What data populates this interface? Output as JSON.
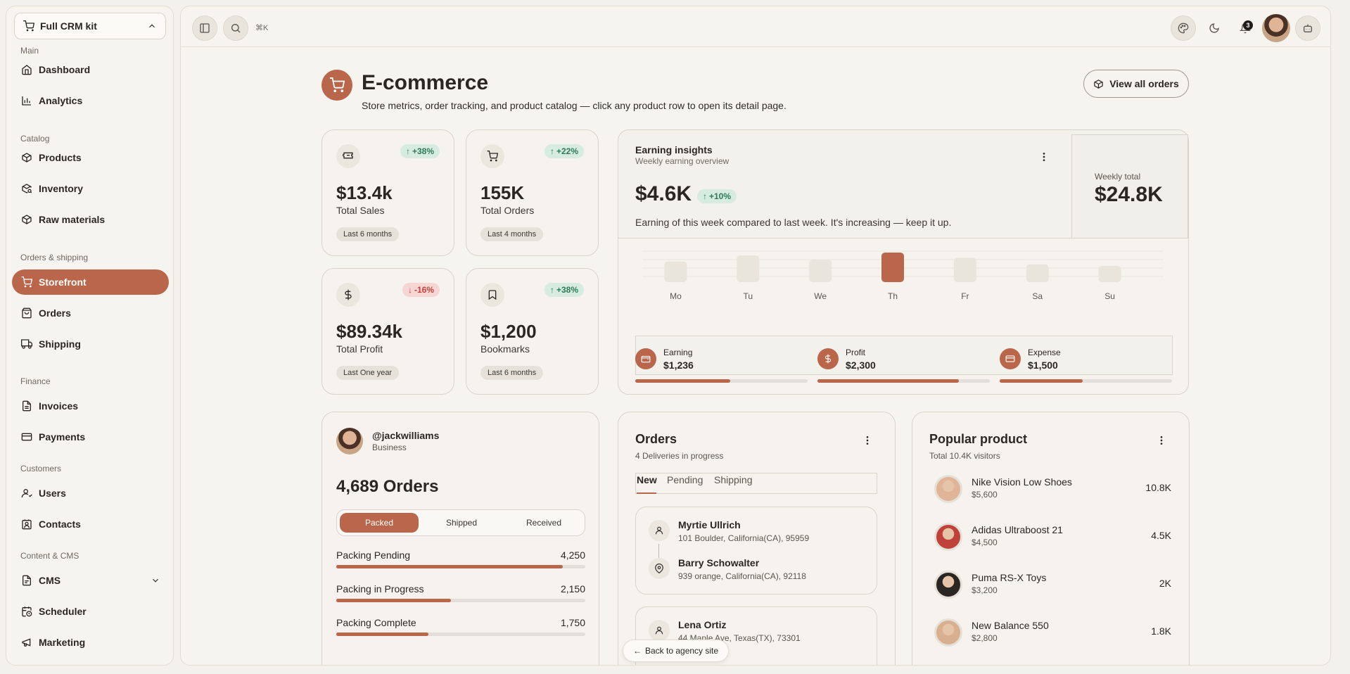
{
  "sidebar": {
    "workspace": "Full CRM kit",
    "sections": {
      "main": "Main",
      "catalog": "Catalog",
      "orders_shipping": "Orders & shipping",
      "finance": "Finance",
      "customers": "Customers",
      "content_cms": "Content & CMS"
    },
    "items": {
      "dashboard": "Dashboard",
      "analytics": "Analytics",
      "products": "Products",
      "inventory": "Inventory",
      "raw_materials": "Raw materials",
      "storefront": "Storefront",
      "orders": "Orders",
      "shipping": "Shipping",
      "invoices": "Invoices",
      "payments": "Payments",
      "users": "Users",
      "contacts": "Contacts",
      "cms": "CMS",
      "scheduler": "Scheduler",
      "marketing": "Marketing"
    }
  },
  "topbar": {
    "shortcut": "⌘K",
    "notification_count": "3"
  },
  "page": {
    "title": "E-commerce",
    "subtitle": "Store metrics, order tracking, and product catalog — click any product row to open its detail page.",
    "view_all_label": "View all orders"
  },
  "stats": [
    {
      "icon": "ticket-icon",
      "change": "+38%",
      "direction": "up",
      "value": "$13.4k",
      "label": "Total Sales",
      "period": "Last 6 months"
    },
    {
      "icon": "cart-icon",
      "change": "+22%",
      "direction": "up",
      "value": "155K",
      "label": "Total Orders",
      "period": "Last 4 months"
    },
    {
      "icon": "dollar-icon",
      "change": "-16%",
      "direction": "down",
      "value": "$89.34k",
      "label": "Total Profit",
      "period": "Last One year"
    },
    {
      "icon": "bookmark-icon",
      "change": "+38%",
      "direction": "up",
      "value": "$1,200",
      "label": "Bookmarks",
      "period": "Last 6 months"
    }
  ],
  "earning": {
    "title": "Earning insights",
    "subtitle": "Weekly earning overview",
    "value": "$4.6K",
    "change": "+10%",
    "description": "Earning of this week compared to last week. It's increasing — keep it up.",
    "weekly_total_label": "Weekly total",
    "weekly_total_value": "$24.8K",
    "metrics": [
      {
        "icon": "wallet-icon",
        "label": "Earning",
        "value": "$1,236",
        "progress": 0.55
      },
      {
        "icon": "dollar-icon",
        "label": "Profit",
        "value": "$2,300",
        "progress": 0.82
      },
      {
        "icon": "card-icon",
        "label": "Expense",
        "value": "$1,500",
        "progress": 0.48
      }
    ]
  },
  "chart_data": {
    "type": "bar",
    "categories": [
      "Mo",
      "Tu",
      "We",
      "Th",
      "Fr",
      "Sa",
      "Su"
    ],
    "values": [
      28,
      36,
      30,
      40,
      33,
      24,
      22
    ],
    "highlight": "Th",
    "colors": {
      "normal": "#e9e5dc",
      "highlight": "#b9664a"
    }
  },
  "order_summary": {
    "username": "@jackwilliams",
    "role": "Business",
    "total": "4,689 Orders",
    "tabs": [
      "Packed",
      "Shipped",
      "Received"
    ],
    "active_tab": "Packed",
    "rows": [
      {
        "label": "Packing Pending",
        "value": "4,250",
        "progress": 0.91
      },
      {
        "label": "Packing in Progress",
        "value": "2,150",
        "progress": 0.46
      },
      {
        "label": "Packing Complete",
        "value": "1,750",
        "progress": 0.37
      }
    ]
  },
  "orders": {
    "title": "Orders",
    "subtitle": "4 Deliveries in progress",
    "tabs": [
      "New",
      "Pending",
      "Shipping"
    ],
    "active_tab": "New",
    "list": [
      {
        "from_name": "Myrtie Ullrich",
        "from_addr": "101 Boulder, California(CA), 95959",
        "to_name": "Barry Schowalter",
        "to_addr": "939 orange, California(CA), 92118"
      },
      {
        "from_name": "Lena Ortiz",
        "from_addr": "44 Maple Ave, Texas(TX), 73301"
      }
    ],
    "back_link": "Back to agency site"
  },
  "popular": {
    "title": "Popular product",
    "subtitle": "Total 10.4K visitors",
    "items": [
      {
        "name": "Nike Vision Low Shoes",
        "price": "$5,600",
        "visitors": "10.8K"
      },
      {
        "name": "Adidas Ultraboost 21",
        "price": "$4,500",
        "visitors": "4.5K"
      },
      {
        "name": "Puma RS-X Toys",
        "price": "$3,200",
        "visitors": "2K"
      },
      {
        "name": "New Balance 550",
        "price": "$2,800",
        "visitors": "1.8K"
      }
    ]
  }
}
